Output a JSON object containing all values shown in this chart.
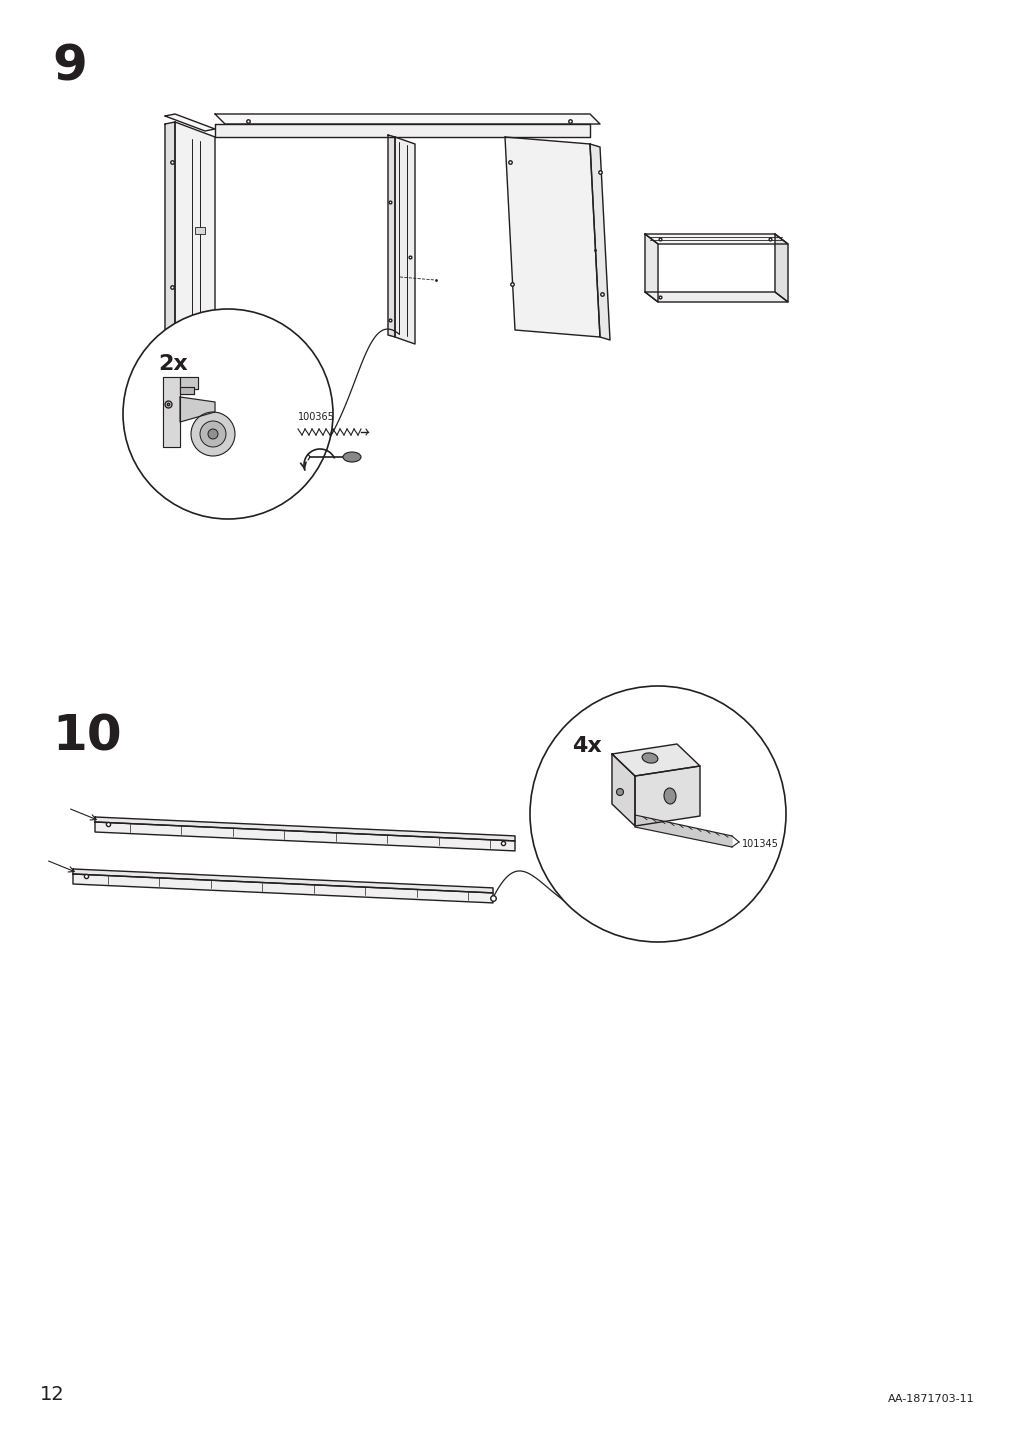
{
  "bg_color": "#ffffff",
  "line_color": "#231f20",
  "step9_label": "9",
  "step10_label": "10",
  "multiplier_2x": "2x",
  "multiplier_4x": "4x",
  "part_code_1": "100365",
  "part_code_2": "101345",
  "page_number": "12",
  "doc_code": "AA-1871703-11",
  "title_fontsize": 36,
  "label_fontsize": 14,
  "small_fontsize": 7
}
